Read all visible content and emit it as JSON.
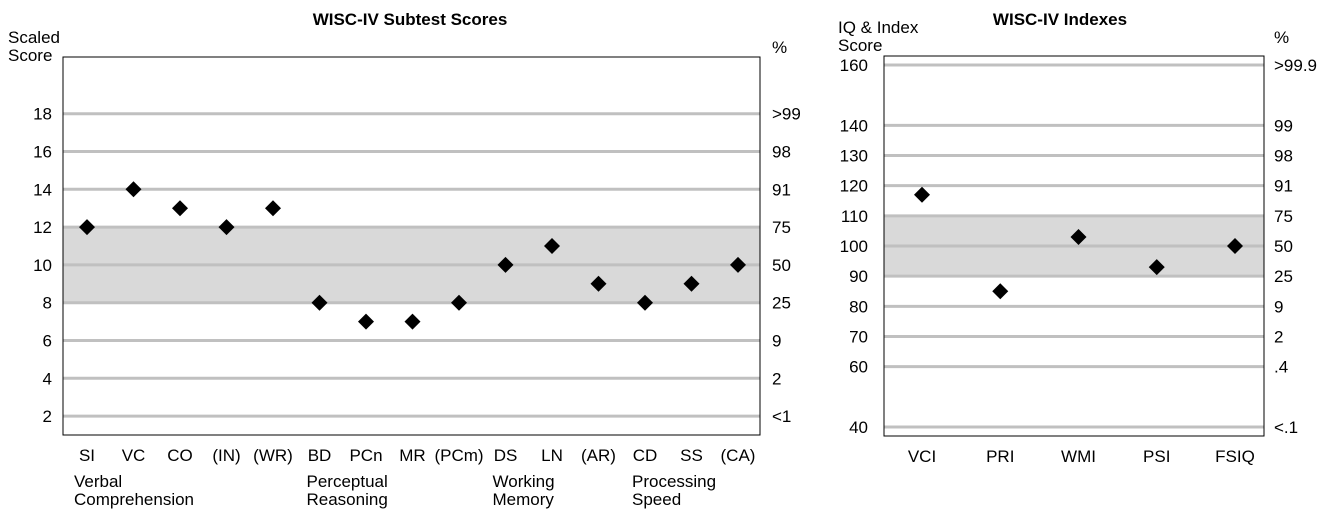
{
  "charts": [
    {
      "title": "WISC-IV Subtest Scores",
      "ylabel_lines": [
        "Scaled",
        "Score"
      ],
      "right_label": "%",
      "ylim": [
        1,
        21
      ],
      "y_ticks": [
        {
          "value": 2,
          "label": "2",
          "pct": "<1"
        },
        {
          "value": 4,
          "label": "4",
          "pct": "2"
        },
        {
          "value": 6,
          "label": "6",
          "pct": "9"
        },
        {
          "value": 8,
          "label": "8",
          "pct": "25"
        },
        {
          "value": 10,
          "label": "10",
          "pct": "50"
        },
        {
          "value": 12,
          "label": "12",
          "pct": "75"
        },
        {
          "value": 14,
          "label": "14",
          "pct": "91"
        },
        {
          "value": 16,
          "label": "16",
          "pct": "98"
        },
        {
          "value": 18,
          "label": "18",
          "pct": ">99"
        }
      ],
      "band": [
        8,
        12
      ],
      "categories": [
        "SI",
        "VC",
        "CO",
        "(IN)",
        "(WR)",
        "BD",
        "PCn",
        "MR",
        "(PCm)",
        "DS",
        "LN",
        "(AR)",
        "CD",
        "SS",
        "(CA)"
      ],
      "values": [
        12,
        14,
        13,
        12,
        13,
        8,
        7,
        7,
        8,
        10,
        11,
        9,
        8,
        9,
        10
      ],
      "groups": [
        {
          "lines": [
            "Verbal",
            "Comprehension"
          ],
          "start": 0
        },
        {
          "lines": [
            "Perceptual",
            "Reasoning"
          ],
          "start": 5
        },
        {
          "lines": [
            "Working",
            "Memory"
          ],
          "start": 9
        },
        {
          "lines": [
            "Processing",
            "Speed"
          ],
          "start": 12
        }
      ]
    },
    {
      "title": "WISC-IV Indexes",
      "ylabel_lines": [
        "IQ & Index",
        "Score"
      ],
      "right_label": "%",
      "ylim": [
        37,
        163
      ],
      "y_ticks": [
        {
          "value": 40,
          "label": "40",
          "pct": "<.1"
        },
        {
          "value": 60,
          "label": "60",
          "pct": ".4"
        },
        {
          "value": 70,
          "label": "70",
          "pct": "2"
        },
        {
          "value": 80,
          "label": "80",
          "pct": "9"
        },
        {
          "value": 90,
          "label": "90",
          "pct": "25"
        },
        {
          "value": 100,
          "label": "100",
          "pct": "50"
        },
        {
          "value": 110,
          "label": "110",
          "pct": "75"
        },
        {
          "value": 120,
          "label": "120",
          "pct": "91"
        },
        {
          "value": 130,
          "label": "130",
          "pct": "98"
        },
        {
          "value": 140,
          "label": "140",
          "pct": "99"
        },
        {
          "value": 160,
          "label": "160",
          "pct": ">99.9"
        }
      ],
      "band": [
        90,
        110
      ],
      "categories": [
        "VCI",
        "PRI",
        "WMI",
        "PSI",
        "FSIQ"
      ],
      "values": [
        117,
        85,
        103,
        93,
        100
      ],
      "groups": []
    }
  ],
  "chart_data": [
    {
      "type": "scatter",
      "title": "WISC-IV Subtest Scores",
      "ylabel": "Scaled Score",
      "y2label": "%",
      "categories": [
        "SI",
        "VC",
        "CO",
        "(IN)",
        "(WR)",
        "BD",
        "PCn",
        "MR",
        "(PCm)",
        "DS",
        "LN",
        "(AR)",
        "CD",
        "SS",
        "(CA)"
      ],
      "values": [
        12,
        14,
        13,
        12,
        13,
        8,
        7,
        7,
        8,
        10,
        11,
        9,
        8,
        9,
        10
      ],
      "ylim": [
        1,
        21
      ],
      "shaded_band": [
        8,
        12
      ],
      "grid": true
    },
    {
      "type": "scatter",
      "title": "WISC-IV Indexes",
      "ylabel": "IQ & Index Score",
      "y2label": "%",
      "categories": [
        "VCI",
        "PRI",
        "WMI",
        "PSI",
        "FSIQ"
      ],
      "values": [
        117,
        85,
        103,
        93,
        100
      ],
      "ylim": [
        37,
        163
      ],
      "shaded_band": [
        90,
        110
      ],
      "grid": true
    }
  ],
  "colors": {
    "band": "#d9d9d9",
    "grid": "#c0c0c0",
    "marker": "#000000",
    "frame": "#000000"
  }
}
